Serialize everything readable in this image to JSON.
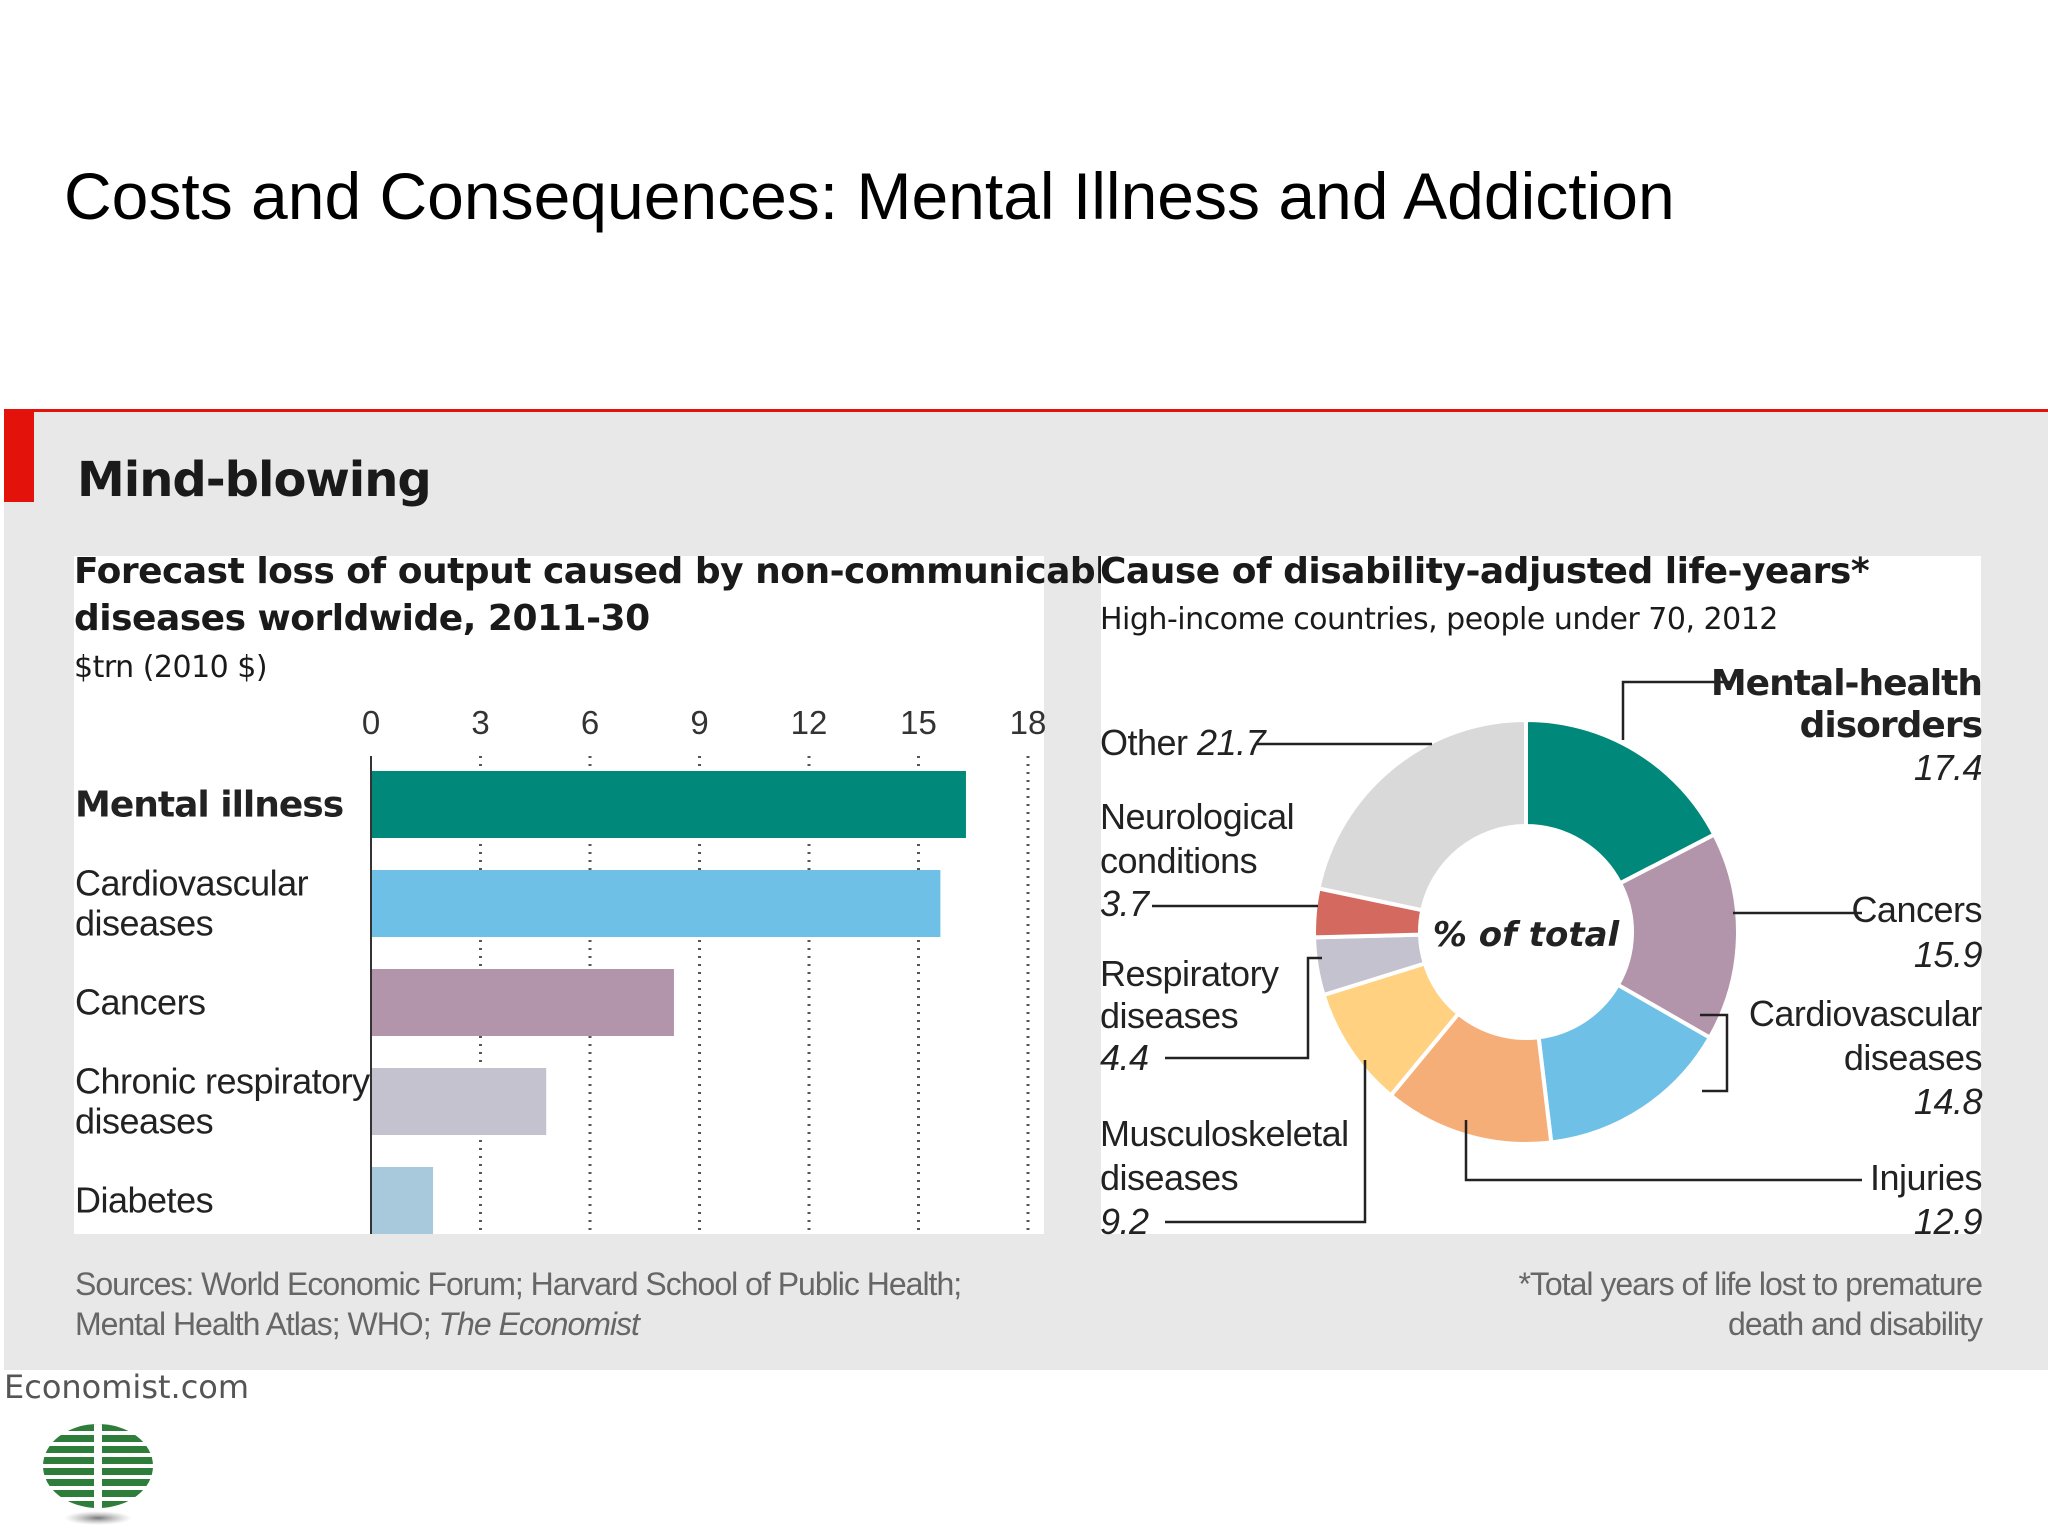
{
  "slide": {
    "title": "Costs and Consequences:  Mental Illness and Addiction"
  },
  "panel": {
    "title": "Mind-blowing",
    "credit": "Economist.com",
    "brand_color": "#e3120b"
  },
  "chart_data": [
    {
      "type": "bar",
      "orientation": "horizontal",
      "title": [
        "Forecast loss of output caused by non-communicable",
        "diseases worldwide, 2011-30"
      ],
      "unit_label": "$trn (2010 $)",
      "ticks": [
        "0",
        "3",
        "6",
        "9",
        "12",
        "15",
        "18"
      ],
      "xlim": [
        0,
        18
      ],
      "grid": true,
      "categories": [
        {
          "label": [
            "Mental illness"
          ],
          "value": 16.3,
          "color": "#00897b",
          "bold": true
        },
        {
          "label": [
            "Cardiovascular",
            "diseases"
          ],
          "value": 15.6,
          "color": "#6ec0e6",
          "bold": false
        },
        {
          "label": [
            "Cancers"
          ],
          "value": 8.3,
          "color": "#b294ab",
          "bold": false
        },
        {
          "label": [
            "Chronic respiratory",
            "diseases"
          ],
          "value": 4.8,
          "color": "#c4c2cf",
          "bold": false
        },
        {
          "label": [
            "Diabetes"
          ],
          "value": 1.7,
          "color": "#a8c8dc",
          "bold": false
        }
      ],
      "source": [
        "Sources: World Economic Forum; Harvard School of Public Health;",
        "Mental Health Atlas; WHO; "
      ],
      "source_italic": "The Economist"
    },
    {
      "type": "pie",
      "style": "donut",
      "title": "Cause of disability-adjusted life-years*",
      "subtitle": "High-income countries, people under 70, 2012",
      "center_label": "% of total",
      "slices": [
        {
          "label": [
            "Mental-health",
            "disorders"
          ],
          "value": 17.4,
          "color": "#00897b",
          "value_text": "17.4"
        },
        {
          "label": [
            "Cancers"
          ],
          "value": 15.9,
          "color": "#b294ab",
          "value_text": "15.9"
        },
        {
          "label": [
            "Cardiovascular",
            "diseases"
          ],
          "value": 14.8,
          "color": "#6ec0e6",
          "value_text": "14.8"
        },
        {
          "label": [
            "Injuries"
          ],
          "value": 12.9,
          "color": "#f6ae78",
          "value_text": "12.9"
        },
        {
          "label": [
            "Musculoskeletal",
            "diseases"
          ],
          "value": 9.2,
          "color": "#ffd180",
          "value_text": "9.2"
        },
        {
          "label": [
            "Respiratory",
            "diseases"
          ],
          "value": 4.4,
          "color": "#c4c2cf",
          "value_text": "4.4"
        },
        {
          "label": [
            "Neurological",
            "conditions"
          ],
          "value": 3.7,
          "color": "#d3695f",
          "value_text": "3.7"
        },
        {
          "label": [
            "Other"
          ],
          "value": 21.7,
          "color": "#d9d9d9",
          "value_text": "21.7"
        }
      ],
      "footnote": [
        "*Total years of life lost to premature",
        "death and disability"
      ]
    }
  ]
}
